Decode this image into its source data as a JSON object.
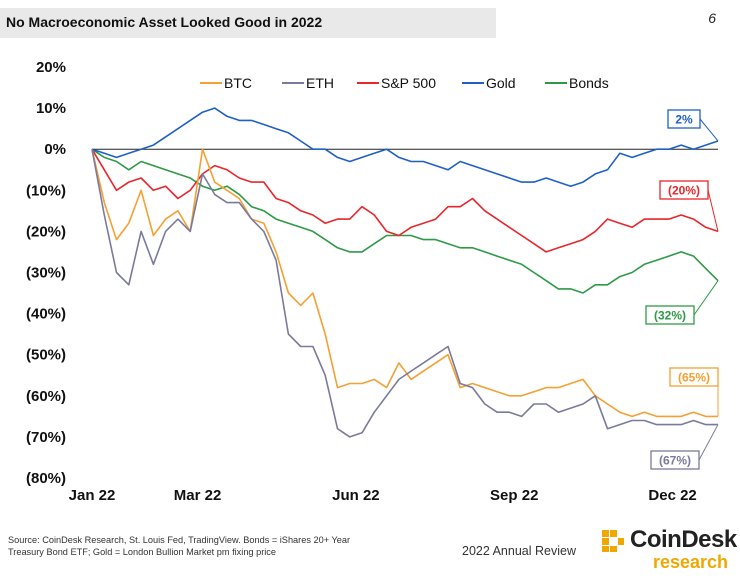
{
  "header": {
    "title": "No Macroeconomic Asset Looked Good in 2022",
    "page_number": "6"
  },
  "footer": {
    "source_line1": "Source: CoinDesk Research, St. Louis Fed, TradingView. Bonds = iShares 20+ Year",
    "source_line2": "Treasury Bond ETF; Gold = London Bullion Market pm fixing price",
    "review": "2022 Annual Review",
    "logo_name": "CoinDesk",
    "logo_sub": "research"
  },
  "chart_data": {
    "type": "line",
    "title": "No Macroeconomic Asset Looked Good in 2022",
    "xlabel": "",
    "ylabel": "",
    "x_range_weeks": [
      0,
      51
    ],
    "ylim": [
      -80,
      20
    ],
    "yticks": [
      20,
      10,
      0,
      -10,
      -20,
      -30,
      -40,
      -50,
      -60,
      -70,
      -80
    ],
    "ytick_labels": [
      "20%",
      "10%",
      "0%",
      "(10%)",
      "(20%)",
      "(30%)",
      "(40%)",
      "(50%)",
      "(60%)",
      "(70%)",
      "(80%)"
    ],
    "xticks": [
      {
        "week": 0,
        "label": "Jan 22"
      },
      {
        "week": 8.6,
        "label": "Mar 22"
      },
      {
        "week": 21.5,
        "label": "Jun 22"
      },
      {
        "week": 34.4,
        "label": "Sep 22"
      },
      {
        "week": 47.3,
        "label": "Dec 22"
      }
    ],
    "legend_position": "top",
    "series": [
      {
        "name": "BTC",
        "color": "#f5a033",
        "end_label": "(65%)",
        "values": [
          0,
          -13,
          -22,
          -18,
          -10,
          -21,
          -17,
          -15,
          -20,
          0,
          -8,
          -10,
          -12,
          -17,
          -18,
          -25,
          -35,
          -38,
          -35,
          -45,
          -58,
          -57,
          -57,
          -56,
          -58,
          -52,
          -56,
          -54,
          -52,
          -50,
          -58,
          -57,
          -58,
          -59,
          -60,
          -60,
          -59,
          -58,
          -58,
          -57,
          -56,
          -60,
          -62,
          -64,
          -65,
          -64,
          -65,
          -65,
          -65,
          -64,
          -65,
          -65
        ]
      },
      {
        "name": "ETH",
        "color": "#7a7a9c",
        "end_label": "(67%)",
        "values": [
          0,
          -16,
          -30,
          -33,
          -20,
          -28,
          -20,
          -17,
          -20,
          -6,
          -11,
          -13,
          -13,
          -17,
          -20,
          -27,
          -45,
          -48,
          -48,
          -55,
          -68,
          -70,
          -69,
          -64,
          -60,
          -56,
          -54,
          -52,
          -50,
          -48,
          -57,
          -58,
          -62,
          -64,
          -64,
          -65,
          -62,
          -62,
          -64,
          -63,
          -62,
          -60,
          -68,
          -67,
          -66,
          -66,
          -67,
          -67,
          -67,
          -66,
          -67,
          -67
        ]
      },
      {
        "name": "S&P 500",
        "color": "#e8262b",
        "end_label": "(20%)",
        "values": [
          0,
          -5,
          -10,
          -8,
          -7,
          -10,
          -9,
          -12,
          -10,
          -6,
          -4,
          -5,
          -7,
          -8,
          -8,
          -12,
          -13,
          -15,
          -16,
          -18,
          -17,
          -17,
          -14,
          -16,
          -20,
          -21,
          -19,
          -18,
          -17,
          -14,
          -14,
          -12,
          -15,
          -17,
          -19,
          -21,
          -23,
          -25,
          -24,
          -23,
          -22,
          -20,
          -17,
          -18,
          -19,
          -17,
          -17,
          -17,
          -16,
          -17,
          -19,
          -20
        ]
      },
      {
        "name": "Gold",
        "color": "#1f5fc8",
        "end_label": "2%",
        "values": [
          0,
          -1,
          -2,
          -1,
          0,
          1,
          3,
          5,
          7,
          9,
          10,
          8,
          7,
          7,
          6,
          5,
          4,
          2,
          0,
          0,
          -2,
          -3,
          -2,
          -1,
          0,
          -2,
          -3,
          -3,
          -4,
          -5,
          -3,
          -4,
          -5,
          -6,
          -7,
          -8,
          -8,
          -7,
          -8,
          -9,
          -8,
          -6,
          -5,
          -1,
          -2,
          -1,
          0,
          0,
          1,
          0,
          1,
          2
        ]
      },
      {
        "name": "Bonds",
        "color": "#2e9a46",
        "end_label": "(32%)",
        "values": [
          0,
          -2,
          -3,
          -5,
          -3,
          -4,
          -5,
          -6,
          -7,
          -9,
          -10,
          -9,
          -11,
          -14,
          -15,
          -17,
          -18,
          -19,
          -20,
          -22,
          -24,
          -25,
          -25,
          -23,
          -21,
          -21,
          -21,
          -22,
          -22,
          -23,
          -24,
          -24,
          -25,
          -26,
          -27,
          -28,
          -30,
          -32,
          -34,
          -34,
          -35,
          -33,
          -33,
          -31,
          -30,
          -28,
          -27,
          -26,
          -25,
          -26,
          -29,
          -32
        ]
      }
    ]
  }
}
